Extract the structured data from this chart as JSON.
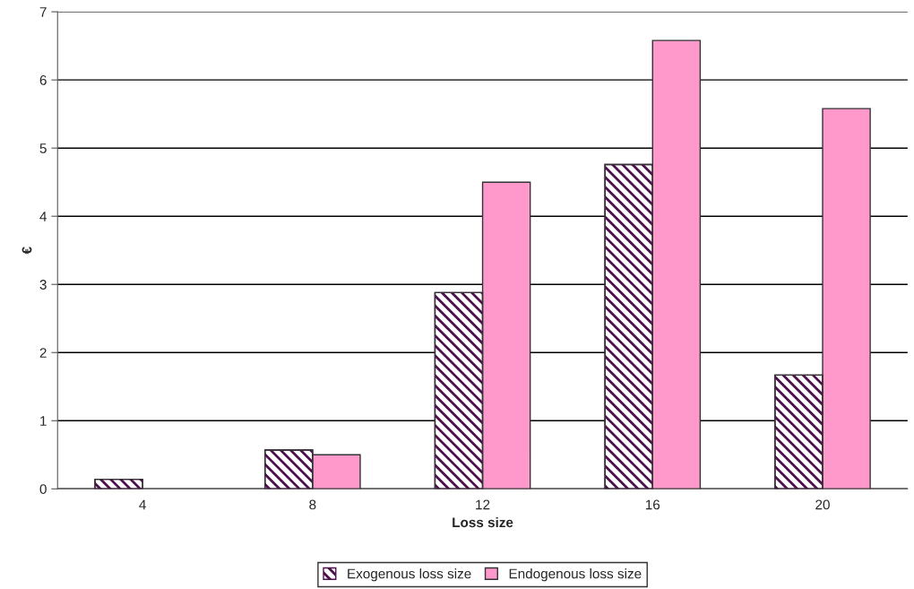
{
  "chart_data": {
    "type": "bar",
    "xlabel": "Loss size",
    "ylabel": "€",
    "categories": [
      "4",
      "8",
      "12",
      "16",
      "20"
    ],
    "series": [
      {
        "name": "Exogenous loss size",
        "color": "#4d0f4d",
        "values": [
          0.14,
          0.57,
          2.88,
          4.76,
          1.67
        ]
      },
      {
        "name": "Endogenous loss size",
        "color": "#ff99cc",
        "values": [
          null,
          0.5,
          4.5,
          6.58,
          5.58
        ]
      }
    ],
    "ylim": [
      0,
      7
    ],
    "yticks": [
      0,
      1,
      2,
      3,
      4,
      5,
      6,
      7
    ],
    "grid": "y",
    "legend": "bottom"
  }
}
